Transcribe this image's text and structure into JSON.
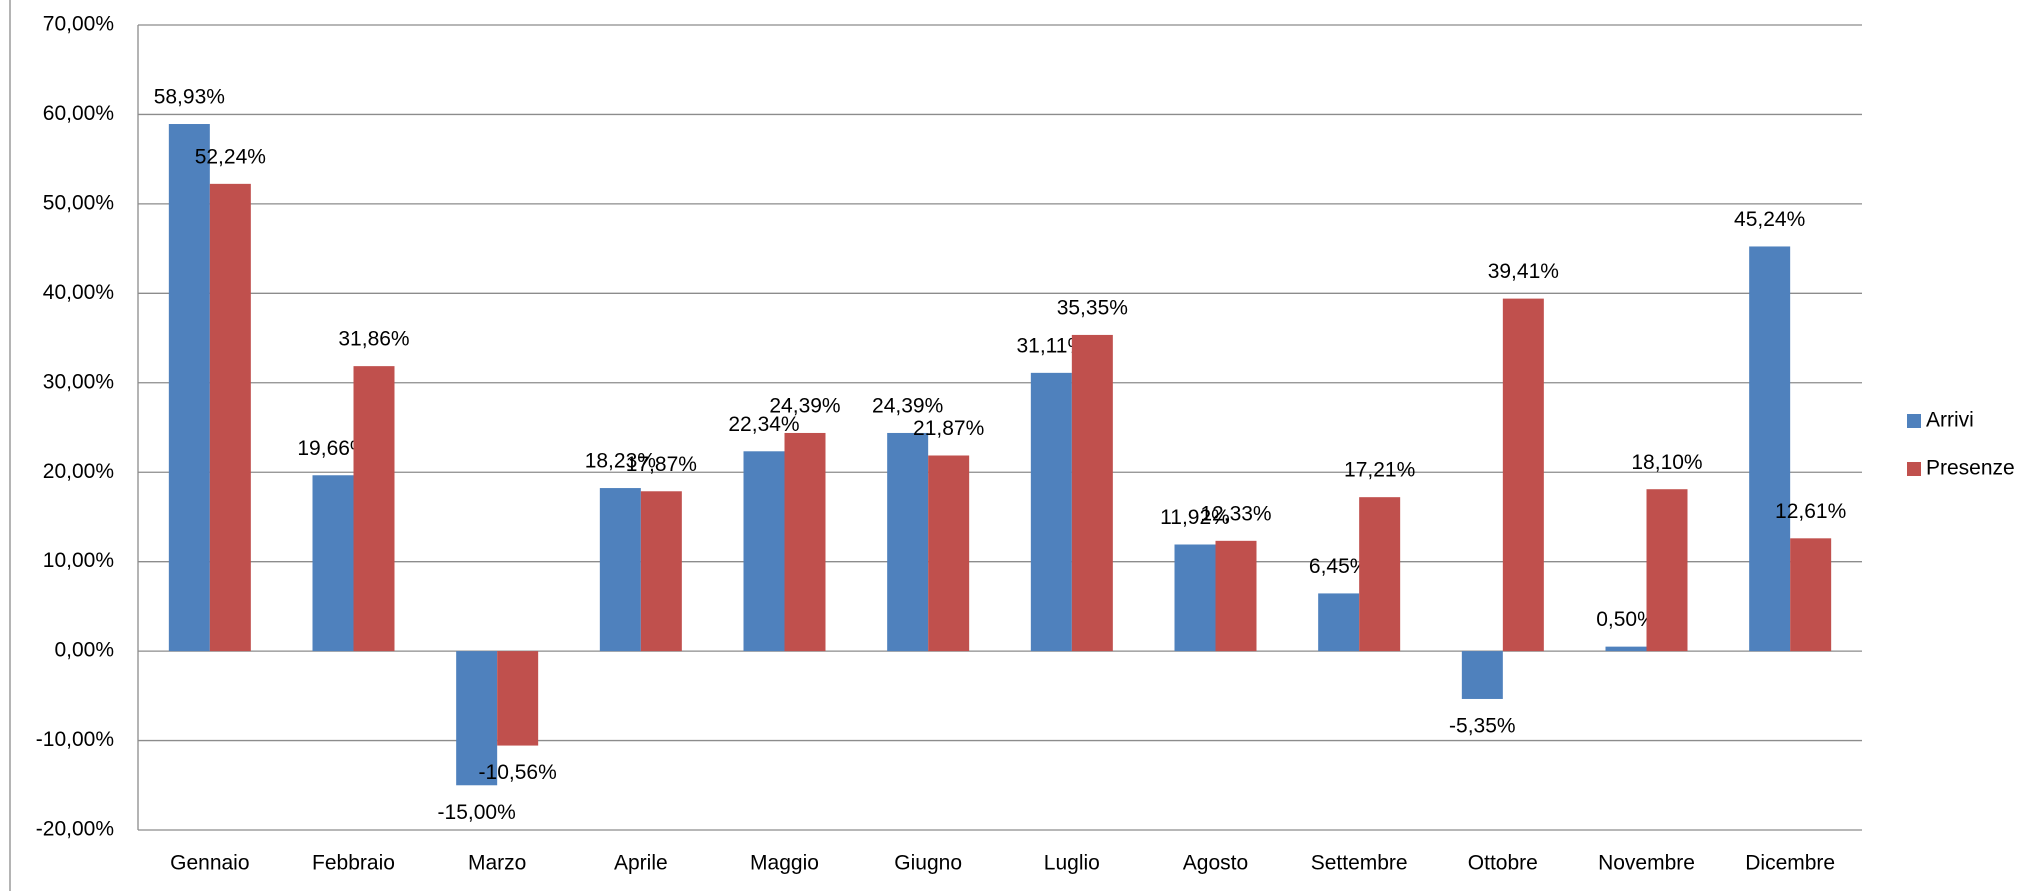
{
  "chart_data": {
    "type": "bar",
    "categories": [
      "Gennaio",
      "Febbraio",
      "Marzo",
      "Aprile",
      "Maggio",
      "Giugno",
      "Luglio",
      "Agosto",
      "Settembre",
      "Ottobre",
      "Novembre",
      "Dicembre"
    ],
    "series": [
      {
        "name": "Arrivi",
        "color": "#4f81bd",
        "values": [
          58.93,
          19.66,
          -15.0,
          18.23,
          22.34,
          24.39,
          31.11,
          11.92,
          6.45,
          -5.35,
          0.5,
          45.24
        ],
        "value_labels": [
          "58,93%",
          "19,66%",
          "-15,00%",
          "18,23%",
          "22,34%",
          "24,39%",
          "31,11%",
          "11,92%",
          "6,45%",
          "-5,35%",
          "0,50%",
          "45,24%"
        ]
      },
      {
        "name": "Presenze",
        "color": "#c0504d",
        "values": [
          52.24,
          31.86,
          -10.56,
          17.87,
          24.39,
          21.87,
          35.35,
          12.33,
          17.21,
          39.41,
          18.1,
          12.61
        ],
        "value_labels": [
          "52,24%",
          "31,86%",
          "-10,56%",
          "17,87%",
          "24,39%",
          "21,87%",
          "35,35%",
          "12,33%",
          "17,21%",
          "39,41%",
          "18,10%",
          "12,61%"
        ]
      }
    ],
    "ylim": [
      -20,
      70
    ],
    "yticks": [
      {
        "value": -20,
        "label": "-20,00%"
      },
      {
        "value": -10,
        "label": "-10,00%"
      },
      {
        "value": 0,
        "label": "0,00%"
      },
      {
        "value": 10,
        "label": "10,00%"
      },
      {
        "value": 20,
        "label": "20,00%"
      },
      {
        "value": 30,
        "label": "30,00%"
      },
      {
        "value": 40,
        "label": "40,00%"
      },
      {
        "value": 50,
        "label": "50,00%"
      },
      {
        "value": 60,
        "label": "60,00%"
      },
      {
        "value": 70,
        "label": "70,00%"
      }
    ],
    "grid": true,
    "legend": "right"
  }
}
